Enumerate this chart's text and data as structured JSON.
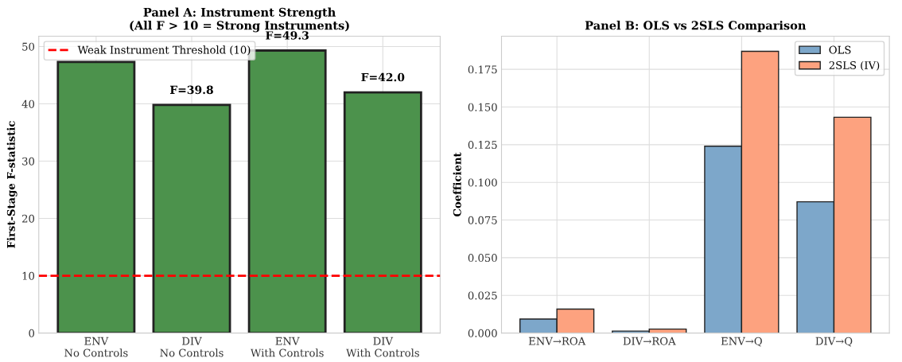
{
  "chart_data": [
    {
      "type": "bar",
      "title": "Panel A: Instrument Strength\n(All F > 10 = Strong Instruments)",
      "ylabel": "First-Stage F-statistic",
      "categories": [
        "ENV\nNo Controls",
        "DIV\nNo Controls",
        "ENV\nWith Controls",
        "DIV\nWith Controls"
      ],
      "series": [
        {
          "color": "#4c924c",
          "values": [
            47.3,
            39.8,
            49.3,
            42.0
          ],
          "value_labels": [
            null,
            "F=39.8",
            "F=49.3",
            "F=42.0"
          ]
        }
      ],
      "ylim": [
        0,
        51.8
      ],
      "yticks": [
        0,
        10,
        20,
        30,
        40,
        50
      ],
      "ref_lines": [
        {
          "axis": "y",
          "value": 10,
          "label": "Weak Instrument Threshold (10)",
          "color": "#ff0000",
          "line_style": "dashed"
        }
      ],
      "grid": true,
      "legend": "top left"
    },
    {
      "type": "bar",
      "title": "Panel B: OLS vs 2SLS Comparison",
      "ylabel": "Coefficient",
      "categories": [
        "ENV→ROA",
        "DIV→ROA",
        "ENV→Q",
        "DIV→Q"
      ],
      "series": [
        {
          "name": "OLS",
          "color": "#7da7ca",
          "values": [
            0.0093,
            0.0013,
            0.124,
            0.0871
          ]
        },
        {
          "name": "2SLS (IV)",
          "color": "#fda27f",
          "values": [
            0.0159,
            0.0026,
            0.187,
            0.1432
          ]
        }
      ],
      "ylim": [
        0,
        0.197
      ],
      "yticks": [
        {
          "value": 0,
          "label": "0.000"
        },
        {
          "value": 0.025,
          "label": "0.025"
        },
        {
          "value": 0.05,
          "label": "0.050"
        },
        {
          "value": 0.075,
          "label": "0.075"
        },
        {
          "value": 0.1,
          "label": "0.100"
        },
        {
          "value": 0.125,
          "label": "0.125"
        },
        {
          "value": 0.15,
          "label": "0.150"
        },
        {
          "value": 0.175,
          "label": "0.175"
        }
      ],
      "grid": true,
      "legend": "top right"
    }
  ]
}
